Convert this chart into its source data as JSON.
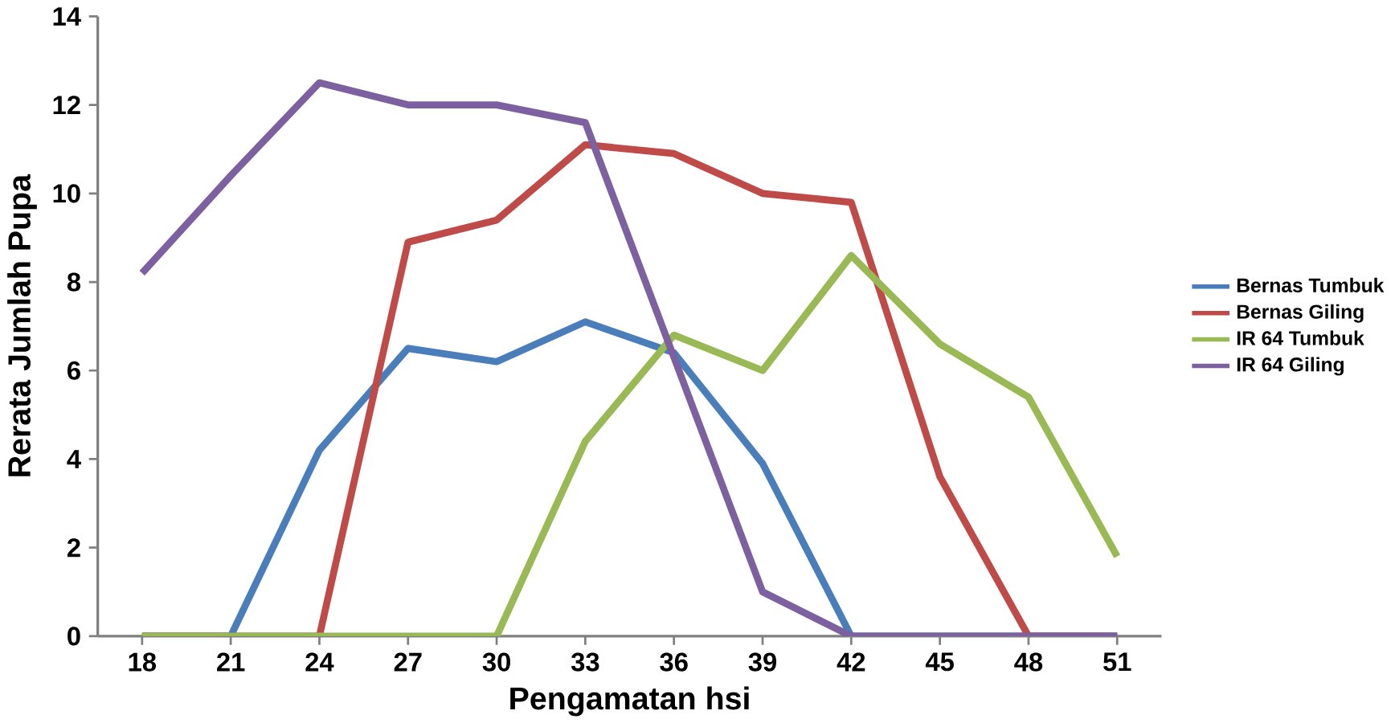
{
  "chart_data": {
    "type": "line",
    "xlabel": "Pengamatan hsi",
    "ylabel": "Rerata Jumlah Pupa",
    "categories": [
      "18",
      "21",
      "24",
      "27",
      "30",
      "33",
      "36",
      "39",
      "42",
      "45",
      "48",
      "51"
    ],
    "ylim": [
      0,
      14
    ],
    "yticks": [
      0,
      2,
      4,
      6,
      8,
      10,
      12,
      14
    ],
    "grid": false,
    "legend": "right",
    "marker": "none",
    "series": [
      {
        "name": "Bernas Tumbuk",
        "color": "#4a7ebb",
        "values": [
          0,
          0,
          4.2,
          6.5,
          6.2,
          7.1,
          6.4,
          3.9,
          0,
          0,
          0,
          0
        ]
      },
      {
        "name": "Bernas Giling",
        "color": "#be4b48",
        "values": [
          0,
          0,
          0,
          8.9,
          9.4,
          11.1,
          10.9,
          10.0,
          9.8,
          3.6,
          0,
          0
        ]
      },
      {
        "name": "IR 64 Tumbuk",
        "color": "#98b954",
        "values": [
          0,
          0,
          0,
          0,
          0,
          4.4,
          6.8,
          6.0,
          8.6,
          6.6,
          5.4,
          1.8
        ]
      },
      {
        "name": "IR 64 Giling",
        "color": "#7d60a0",
        "values": [
          8.2,
          10.4,
          12.5,
          12.0,
          12.0,
          11.6,
          6.3,
          1.0,
          0,
          0,
          0,
          0
        ]
      }
    ]
  }
}
